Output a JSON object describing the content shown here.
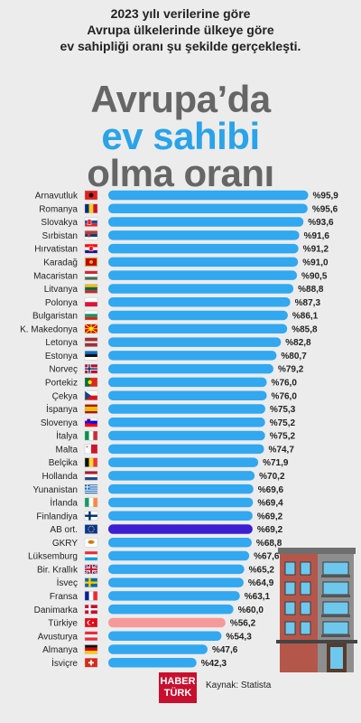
{
  "intro": {
    "line1": "2023 yılı verilerine göre",
    "line2": "Avrupa ülkelerinde ülkeye göre",
    "line3": "ev sahipliği oranı şu şekilde gerçekleşti."
  },
  "headline": {
    "line1": "Avrupa’da",
    "line2": "ev sahibi",
    "line3": "olma oranı"
  },
  "chart_data": {
    "type": "bar",
    "orientation": "horizontal",
    "value_prefix": "%",
    "decimal_separator": ",",
    "categories": [
      "Arnavutluk",
      "Romanya",
      "Slovakya",
      "Sırbistan",
      "Hırvatistan",
      "Karadağ",
      "Macaristan",
      "Litvanya",
      "Polonya",
      "Bulgaristan",
      "K. Makedonya",
      "Letonya",
      "Estonya",
      "Norveç",
      "Portekiz",
      "Çekya",
      "İspanya",
      "Slovenya",
      "İtalya",
      "Malta",
      "Belçika",
      "Hollanda",
      "Yunanistan",
      "İrlanda",
      "Finlandiya",
      "AB ort.",
      "GKRY",
      "Lüksemburg",
      "Bir. Krallık",
      "İsveç",
      "Fransa",
      "Danimarka",
      "Türkiye",
      "Avusturya",
      "Almanya",
      "İsviçre"
    ],
    "values": [
      95.9,
      95.6,
      93.6,
      91.6,
      91.2,
      91.0,
      90.5,
      88.8,
      87.3,
      86.1,
      85.8,
      82.8,
      80.7,
      79.2,
      76.0,
      76.0,
      75.3,
      75.2,
      75.2,
      74.7,
      71.9,
      70.2,
      69.6,
      69.4,
      69.2,
      69.2,
      68.8,
      67.6,
      65.2,
      64.9,
      63.1,
      60.0,
      56.2,
      54.3,
      47.6,
      42.3
    ],
    "data_labels": [
      "%95,9",
      "%95,6",
      "%93,6",
      "%91,6",
      "%91,2",
      "%91,0",
      "%90,5",
      "%88,8",
      "%87,3",
      "%86,1",
      "%85,8",
      "%82,8",
      "%80,7",
      "%79,2",
      "%76,0",
      "%76,0",
      "%75,3",
      "%75,2",
      "%75,2",
      "%74,7",
      "%71,9",
      "%70,2",
      "%69,6",
      "%69,4",
      "%69,2",
      "%69,2",
      "%68,8",
      "%67,6",
      "%65,2",
      "%64,9",
      "%63,1",
      "%60,0",
      "%56,2",
      "%54,3",
      "%47,6",
      "%42,3"
    ],
    "highlight": {
      "AB ort.": "#3b1fd1",
      "Türkiye": "#f59a9a"
    },
    "xlim": [
      0,
      100
    ],
    "grid": false,
    "legend": "none"
  },
  "colors": {
    "bar": "#31a8f0",
    "bar_eu": "#3b1fd1",
    "bar_turkey": "#f59a9a",
    "headline_accent": "#2aa3e8",
    "headline_gray": "#666666",
    "background": "#ececec",
    "logo": "#c8102e"
  },
  "flags": [
    {
      "country": "Arnavutluk",
      "icon": "albania-flag-icon"
    },
    {
      "country": "Romanya",
      "icon": "romania-flag-icon"
    },
    {
      "country": "Slovakya",
      "icon": "slovakia-flag-icon"
    },
    {
      "country": "Sırbistan",
      "icon": "serbia-flag-icon"
    },
    {
      "country": "Hırvatistan",
      "icon": "croatia-flag-icon"
    },
    {
      "country": "Karadağ",
      "icon": "montenegro-flag-icon"
    },
    {
      "country": "Macaristan",
      "icon": "hungary-flag-icon"
    },
    {
      "country": "Litvanya",
      "icon": "lithuania-flag-icon"
    },
    {
      "country": "Polonya",
      "icon": "poland-flag-icon"
    },
    {
      "country": "Bulgaristan",
      "icon": "bulgaria-flag-icon"
    },
    {
      "country": "K. Makedonya",
      "icon": "north-macedonia-flag-icon"
    },
    {
      "country": "Letonya",
      "icon": "latvia-flag-icon"
    },
    {
      "country": "Estonya",
      "icon": "estonia-flag-icon"
    },
    {
      "country": "Norveç",
      "icon": "norway-flag-icon"
    },
    {
      "country": "Portekiz",
      "icon": "portugal-flag-icon"
    },
    {
      "country": "Çekya",
      "icon": "czechia-flag-icon"
    },
    {
      "country": "İspanya",
      "icon": "spain-flag-icon"
    },
    {
      "country": "Slovenya",
      "icon": "slovenia-flag-icon"
    },
    {
      "country": "İtalya",
      "icon": "italy-flag-icon"
    },
    {
      "country": "Malta",
      "icon": "malta-flag-icon"
    },
    {
      "country": "Belçika",
      "icon": "belgium-flag-icon"
    },
    {
      "country": "Hollanda",
      "icon": "netherlands-flag-icon"
    },
    {
      "country": "Yunanistan",
      "icon": "greece-flag-icon"
    },
    {
      "country": "İrlanda",
      "icon": "ireland-flag-icon"
    },
    {
      "country": "Finlandiya",
      "icon": "finland-flag-icon"
    },
    {
      "country": "AB ort.",
      "icon": "eu-flag-icon"
    },
    {
      "country": "GKRY",
      "icon": "cyprus-flag-icon"
    },
    {
      "country": "Lüksemburg",
      "icon": "luxembourg-flag-icon"
    },
    {
      "country": "Bir. Krallık",
      "icon": "uk-flag-icon"
    },
    {
      "country": "İsveç",
      "icon": "sweden-flag-icon"
    },
    {
      "country": "Fransa",
      "icon": "france-flag-icon"
    },
    {
      "country": "Danimarka",
      "icon": "denmark-flag-icon"
    },
    {
      "country": "Türkiye",
      "icon": "turkey-flag-icon"
    },
    {
      "country": "Avusturya",
      "icon": "austria-flag-icon"
    },
    {
      "country": "Almanya",
      "icon": "germany-flag-icon"
    },
    {
      "country": "İsviçre",
      "icon": "switzerland-flag-icon"
    }
  ],
  "footer": {
    "logo_line1": "HABER",
    "logo_line2": "TÜRK",
    "source": "Kaynak: Statista"
  },
  "decor": {
    "building_icon": "apartment-building-icon"
  }
}
